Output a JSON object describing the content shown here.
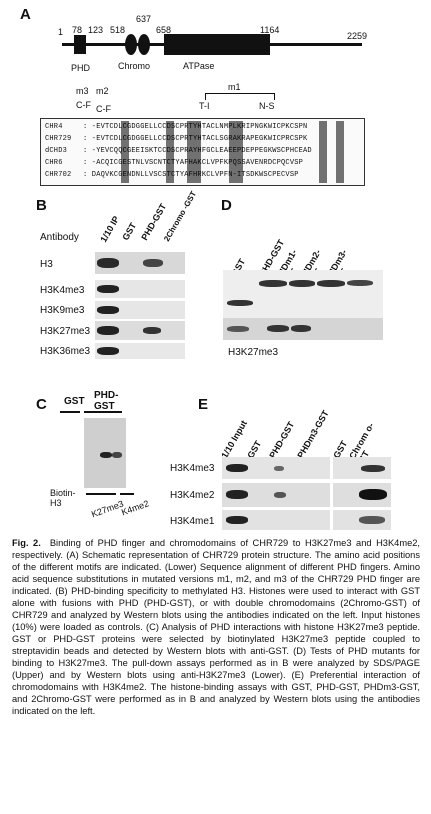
{
  "panels": {
    "a": "A",
    "b": "B",
    "c": "C",
    "d": "D",
    "e": "E"
  },
  "panelA": {
    "numbers": [
      "1",
      "78",
      "123",
      "637",
      "518",
      "658",
      "1164",
      "2259"
    ],
    "domains": [
      "PHD",
      "Chromo",
      "ATPase"
    ],
    "mutations": [
      "m3",
      "m2",
      "C-F",
      "C-F",
      "m1",
      "T-I",
      "N-S"
    ],
    "alignment": {
      "names": [
        "CHR4",
        "CHR729",
        "dCHD3",
        "CHR6",
        "CHR702"
      ],
      "seqs": [
        ": -EVTCDLCGDGGELLCCDSCPRTYHTACLNMPLKRIPNGKWICPKCSPN",
        ": -EVTCDLCGDGGELLCCDSCPRTYHTACLSGRAKRAPEGKWICPRCSPK",
        ": -YEVCQQCGEEISKTCCDSCPRAYHFGCLEAEEPDEPPEGKWSCPHCEAD",
        ": -ACQICGESTNLVSCNTCTYAFHAKCLVPFKPQSSAVENRDCPQCVSP",
        ": DAQVKCGENDNLLVSCSTCTYAFHRKCLVPFN-ITSDKWSCPECVSP"
      ]
    }
  },
  "panelB": {
    "antibody_label": "Antibody",
    "lanes": [
      "1/10 IP",
      "GST",
      "PHD-GST",
      "2Chromo -GST"
    ],
    "rows": [
      "H3",
      "H3K4me3",
      "H3K9me3",
      "H3K27me3",
      "H3K36me3"
    ]
  },
  "panelC": {
    "lanes": [
      "GST",
      "PHD- GST"
    ],
    "left_label": "Biotin- H3",
    "bottom": [
      "K27me3",
      "K4me2"
    ]
  },
  "panelD": {
    "lanes": [
      "GST",
      "PHD-GST",
      "PHDm1- GST",
      "PHDm2- GST",
      "PHDm3- GST"
    ],
    "label": "H3K27me3"
  },
  "panelE": {
    "lanes": [
      "1/10 Input",
      "GST",
      "PHD-GST",
      "PHDm3-GST",
      "GST",
      "2Chrom o-GST"
    ],
    "rows": [
      "H3K4me3",
      "H3K4me2",
      "H3K4me1"
    ]
  },
  "caption": {
    "figure": "Fig. 2.",
    "text": "Binding of PHD finger and chromodomains of CHR729 to H3K27me3 and H3K4me2, respectively. (A) Schematic representation of CHR729 protein structure. The amino acid positions of the different motifs are indicated. (Lower) Sequence alignment of different PHD fingers. Amino acid sequence substitutions in mutated versions m1, m2, and m3 of the CHR729 PHD finger are indicated. (B) PHD-binding specificity to methylated H3. Histones were used to interact with GST alone with fusions with PHD (PHD-GST), or with double chromodomains (2Chromo-GST) of CHR729 and analyzed by Western blots using the antibodies indicated on the left. Input histones (10%) were loaded as controls. (C) Analysis of PHD interactions with histone H3K27me3 peptide. GST or PHD-GST proteins were selected by biotinylated H3K27me3 peptide coupled to streptavidin beads and detected by Western blots with anti-GST. (D) Tests of PHD mutants for binding to H3K27me3. The pull-down assays performed as in B were analyzed by SDS/PAGE (Upper) and by Western blots using anti-H3K27me3 (Lower). (E) Preferential interaction of chromodomains with H3K4me2. The histone-binding assays with GST, PHD-GST, PHDm3-GST, and 2Chromo-GST were performed as in B and analyzed by Western blots using the antibodies indicated on the left."
  }
}
